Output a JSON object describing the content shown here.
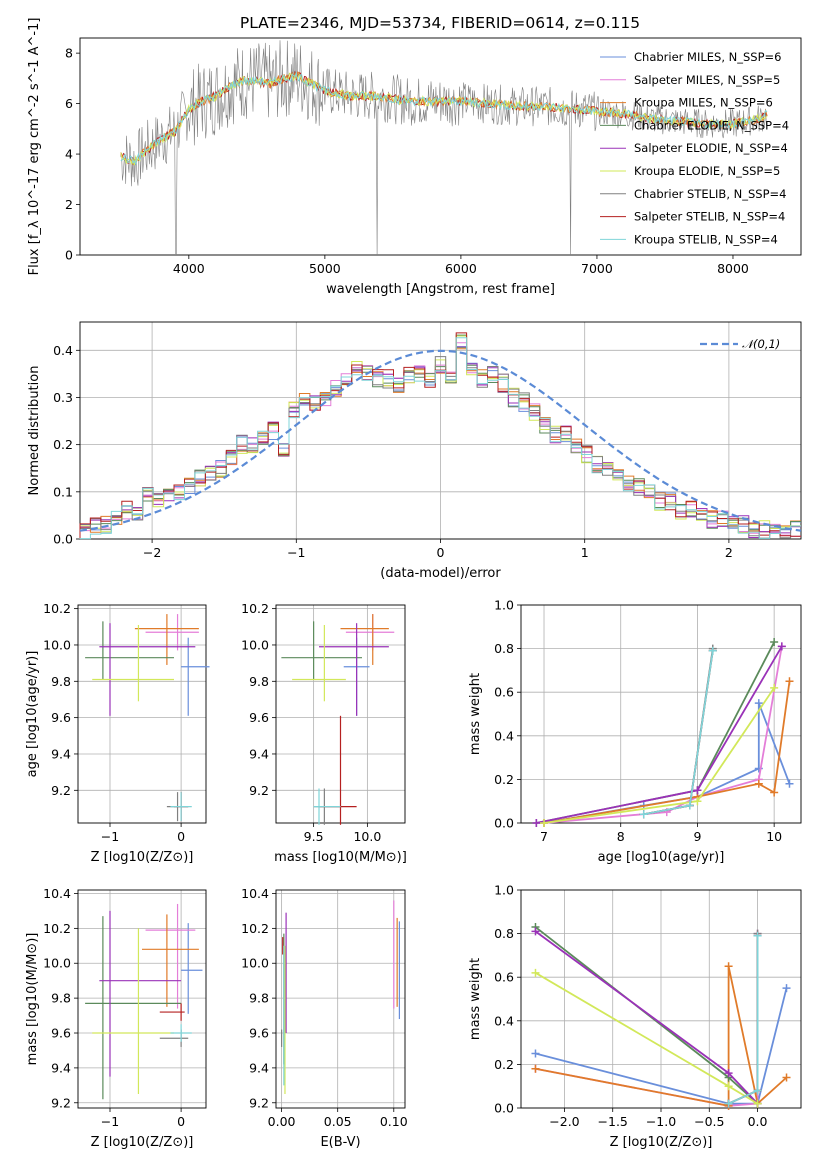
{
  "title": "PLATE=2346, MJD=53734, FIBERID=0614, z=0.115",
  "colors": {
    "chabrier_miles": "#6a8fdb",
    "salpeter_miles": "#e47ed8",
    "kroupa_miles": "#e07b2a",
    "chabrier_elodie": "#5b8a5b",
    "salpeter_elodie": "#9a32b8",
    "kroupa_elodie": "#d2e85a",
    "chabrier_stelib": "#808080",
    "salpeter_stelib": "#b52020",
    "kroupa_stelib": "#7fd4d8",
    "normal": "#5b8bd6"
  },
  "chart_data": [
    {
      "id": "spectrum",
      "type": "line",
      "xlabel": "wavelength [Angstrom, rest frame]",
      "ylabel": "Flux [f_λ 10^-17 erg cm^-2 s^-1 A^-1]",
      "xlim": [
        3200,
        8500
      ],
      "ylim": [
        0,
        8.6
      ],
      "xticks": [
        4000,
        5000,
        6000,
        7000,
        8000
      ],
      "yticks": [
        0,
        2,
        4,
        6,
        8
      ],
      "continuum": {
        "x": [
          3500,
          3600,
          3700,
          3800,
          3900,
          4000,
          4100,
          4200,
          4300,
          4400,
          4500,
          4600,
          4700,
          4800,
          4900,
          5000,
          5200,
          5400,
          5600,
          5800,
          6000,
          6200,
          6400,
          6600,
          6800,
          7000,
          7200,
          7400,
          7600,
          7800,
          8000,
          8200,
          8250
        ],
        "y": [
          3.9,
          3.7,
          4.2,
          4.6,
          4.9,
          5.8,
          6.1,
          6.3,
          6.7,
          6.9,
          6.9,
          6.8,
          7.0,
          7.1,
          6.8,
          6.5,
          6.3,
          6.3,
          6.1,
          6.1,
          6.1,
          6.0,
          5.9,
          5.9,
          5.8,
          5.7,
          5.6,
          5.4,
          5.3,
          5.2,
          5.2,
          5.4,
          5.6
        ]
      },
      "series": [
        {
          "name": "Chabrier MILES, N_SSP=6",
          "color_key": "chabrier_miles"
        },
        {
          "name": "Salpeter MILES, N_SSP=5",
          "color_key": "salpeter_miles"
        },
        {
          "name": "Kroupa MILES, N_SSP=6",
          "color_key": "kroupa_miles"
        },
        {
          "name": "Chabrier ELODIE, N_SSP=4",
          "color_key": "chabrier_elodie"
        },
        {
          "name": "Salpeter ELODIE, N_SSP=4",
          "color_key": "salpeter_elodie"
        },
        {
          "name": "Kroupa ELODIE, N_SSP=5",
          "color_key": "kroupa_elodie"
        },
        {
          "name": "Chabrier STELIB, N_SSP=4",
          "color_key": "chabrier_stelib"
        },
        {
          "name": "Salpeter STELIB, N_SSP=4",
          "color_key": "salpeter_stelib"
        },
        {
          "name": "Kroupa STELIB, N_SSP=4",
          "color_key": "kroupa_stelib"
        }
      ],
      "legend": "top-right"
    },
    {
      "id": "residuals",
      "type": "line",
      "xlabel": "(data-model)/error",
      "ylabel": "Normed distribution",
      "xlim": [
        -2.5,
        2.5
      ],
      "ylim": [
        0,
        0.46
      ],
      "xticks": [
        -2,
        -1,
        0,
        1,
        2
      ],
      "yticks": [
        0.0,
        0.1,
        0.2,
        0.3,
        0.4
      ],
      "grid": true,
      "hist_x": [
        -2.5,
        2.5
      ],
      "hist_y": [
        0.02,
        0.03,
        0.03,
        0.05,
        0.06,
        0.06,
        0.09,
        0.08,
        0.1,
        0.1,
        0.11,
        0.13,
        0.14,
        0.15,
        0.17,
        0.2,
        0.2,
        0.22,
        0.23,
        0.19,
        0.27,
        0.3,
        0.29,
        0.3,
        0.32,
        0.34,
        0.36,
        0.35,
        0.34,
        0.34,
        0.33,
        0.35,
        0.35,
        0.34,
        0.37,
        0.35,
        0.42,
        0.36,
        0.34,
        0.35,
        0.33,
        0.3,
        0.29,
        0.27,
        0.24,
        0.22,
        0.22,
        0.2,
        0.18,
        0.16,
        0.15,
        0.14,
        0.12,
        0.11,
        0.1,
        0.08,
        0.08,
        0.06,
        0.06,
        0.05,
        0.04,
        0.04,
        0.03,
        0.03,
        0.02,
        0.02,
        0.02,
        0.02,
        0.02
      ],
      "normal_label": "𝒩(0,1)",
      "legend": "top-right"
    },
    {
      "id": "age_vs_Z",
      "type": "scatter",
      "xlabel": "Z [log10(Z/Z⊙)]",
      "ylabel": "age  [log10(age/yr)]",
      "xlim": [
        -1.45,
        0.35
      ],
      "ylim": [
        9.02,
        10.22
      ],
      "xticks": [
        -1,
        0
      ],
      "yticks": [
        9.2,
        9.4,
        9.6,
        9.8,
        10.0,
        10.2
      ],
      "grid": true,
      "points": [
        {
          "c": "chabrier_miles",
          "x": 0.1,
          "y": 9.88,
          "xerr": [
            0.1,
            0.3
          ],
          "yerr": [
            0.27,
            0.16
          ]
        },
        {
          "c": "salpeter_miles",
          "x": -0.05,
          "y": 10.07,
          "xerr": [
            0.45,
            0.3
          ],
          "yerr": [
            0.1,
            0.1
          ]
        },
        {
          "c": "kroupa_miles",
          "x": -0.2,
          "y": 10.09,
          "xerr": [
            0.45,
            0.45
          ],
          "yerr": [
            0.2,
            0.08
          ]
        },
        {
          "c": "chabrier_elodie",
          "x": -1.1,
          "y": 9.93,
          "xerr": [
            0.25,
            1.0
          ],
          "yerr": [
            0.12,
            0.2
          ]
        },
        {
          "c": "salpeter_elodie",
          "x": -1.0,
          "y": 9.99,
          "xerr": [
            0.15,
            1.2
          ],
          "yerr": [
            0.38,
            0.13
          ]
        },
        {
          "c": "kroupa_elodie",
          "x": -0.6,
          "y": 9.81,
          "xerr": [
            0.65,
            0.5
          ],
          "yerr": [
            0.12,
            0.3
          ]
        },
        {
          "c": "chabrier_stelib",
          "x": -0.05,
          "y": 9.11,
          "xerr": [
            0.15,
            0.15
          ],
          "yerr": [
            0.08,
            0.08
          ]
        },
        {
          "c": "salpeter_stelib",
          "x": 0.0,
          "y": 9.11,
          "xerr": [
            0.1,
            0.1
          ],
          "yerr": [
            0.08,
            0.08
          ]
        },
        {
          "c": "kroupa_stelib",
          "x": 0.0,
          "y": 9.11,
          "xerr": [
            0.15,
            0.15
          ],
          "yerr": [
            0.08,
            0.08
          ]
        }
      ]
    },
    {
      "id": "age_vs_mass",
      "type": "scatter",
      "xlabel": "mass [log10(M/M⊙)]",
      "ylabel": "",
      "xlim": [
        9.15,
        10.35
      ],
      "ylim": [
        9.02,
        10.22
      ],
      "xticks": [
        9.5,
        10.0
      ],
      "yticks": [
        9.2,
        9.4,
        9.6,
        9.8,
        10.0,
        10.2
      ],
      "grid": true,
      "points": [
        {
          "c": "chabrier_miles",
          "x": 9.9,
          "y": 9.88,
          "xerr": [
            0.12,
            0.12
          ],
          "yerr": [
            0.27,
            0.16
          ]
        },
        {
          "c": "salpeter_miles",
          "x": 10.05,
          "y": 10.07,
          "xerr": [
            0.25,
            0.2
          ],
          "yerr": [
            0.1,
            0.1
          ]
        },
        {
          "c": "kroupa_miles",
          "x": 10.05,
          "y": 10.09,
          "xerr": [
            0.3,
            0.15
          ],
          "yerr": [
            0.2,
            0.08
          ]
        },
        {
          "c": "chabrier_elodie",
          "x": 9.5,
          "y": 9.93,
          "xerr": [
            0.3,
            0.45
          ],
          "yerr": [
            0.12,
            0.2
          ]
        },
        {
          "c": "salpeter_elodie",
          "x": 9.9,
          "y": 9.99,
          "xerr": [
            0.35,
            0.3
          ],
          "yerr": [
            0.38,
            0.13
          ]
        },
        {
          "c": "kroupa_elodie",
          "x": 9.6,
          "y": 9.81,
          "xerr": [
            0.3,
            0.2
          ],
          "yerr": [
            0.12,
            0.3
          ]
        },
        {
          "c": "chabrier_stelib",
          "x": 9.6,
          "y": 9.11,
          "xerr": [
            0.1,
            0.15
          ],
          "yerr": [
            0.1,
            0.1
          ]
        },
        {
          "c": "salpeter_stelib",
          "x": 9.75,
          "y": 9.11,
          "xerr": [
            0.2,
            0.15
          ],
          "yerr": [
            0.1,
            0.5
          ]
        },
        {
          "c": "kroupa_stelib",
          "x": 9.55,
          "y": 9.11,
          "xerr": [
            0.05,
            0.2
          ],
          "yerr": [
            0.1,
            0.1
          ]
        }
      ]
    },
    {
      "id": "weight_vs_age",
      "type": "line",
      "xlabel": "age  [log10(age/yr)]",
      "ylabel": "mass weight",
      "xlim": [
        6.7,
        10.35
      ],
      "ylim": [
        0,
        1.0
      ],
      "xticks": [
        7,
        8,
        9,
        10
      ],
      "yticks": [
        0.0,
        0.2,
        0.4,
        0.6,
        0.8,
        1.0
      ],
      "grid": true,
      "series": [
        {
          "c": "chabrier_miles",
          "x": [
            7.0,
            8.3,
            9.0,
            9.8,
            9.8,
            10.2
          ],
          "y": [
            0.0,
            0.08,
            0.12,
            0.25,
            0.55,
            0.18
          ]
        },
        {
          "c": "salpeter_miles",
          "x": [
            7.0,
            8.6,
            9.0,
            9.8,
            10.1
          ],
          "y": [
            0.0,
            0.05,
            0.12,
            0.2,
            0.81
          ]
        },
        {
          "c": "kroupa_miles",
          "x": [
            7.0,
            9.0,
            9.8,
            10.0,
            10.2
          ],
          "y": [
            0.0,
            0.12,
            0.18,
            0.14,
            0.65
          ]
        },
        {
          "c": "chabrier_elodie",
          "x": [
            6.9,
            9.0,
            10.0
          ],
          "y": [
            0.0,
            0.15,
            0.83
          ]
        },
        {
          "c": "salpeter_elodie",
          "x": [
            6.9,
            9.0,
            10.1
          ],
          "y": [
            0.0,
            0.15,
            0.81
          ]
        },
        {
          "c": "kroupa_elodie",
          "x": [
            7.0,
            9.0,
            10.0
          ],
          "y": [
            0.0,
            0.1,
            0.62
          ]
        },
        {
          "c": "chabrier_stelib",
          "x": [
            8.3,
            8.9,
            9.2
          ],
          "y": [
            0.04,
            0.08,
            0.8
          ]
        },
        {
          "c": "salpeter_stelib",
          "x": [
            8.3,
            8.9,
            9.2
          ],
          "y": [
            0.04,
            0.08,
            0.79
          ]
        },
        {
          "c": "kroupa_stelib",
          "x": [
            8.3,
            8.9,
            9.2
          ],
          "y": [
            0.04,
            0.08,
            0.79
          ]
        }
      ]
    },
    {
      "id": "mass_vs_Z",
      "type": "scatter",
      "xlabel": "Z [log10(Z/Z⊙)]",
      "ylabel": "mass [log10(M/M⊙)]",
      "xlim": [
        -1.45,
        0.35
      ],
      "ylim": [
        9.17,
        10.42
      ],
      "xticks": [
        -1,
        0
      ],
      "yticks": [
        9.2,
        9.4,
        9.6,
        9.8,
        10.0,
        10.2,
        10.4
      ],
      "grid": true,
      "points": [
        {
          "c": "chabrier_miles",
          "x": 0.1,
          "y": 9.96,
          "xerr": [
            0.1,
            0.2
          ],
          "yerr": [
            0.25,
            0.27
          ]
        },
        {
          "c": "salpeter_miles",
          "x": -0.05,
          "y": 10.19,
          "xerr": [
            0.45,
            0.25
          ],
          "yerr": [
            0.45,
            0.15
          ]
        },
        {
          "c": "kroupa_miles",
          "x": -0.2,
          "y": 10.08,
          "xerr": [
            0.35,
            0.45
          ],
          "yerr": [
            0.33,
            0.2
          ]
        },
        {
          "c": "chabrier_elodie",
          "x": -1.1,
          "y": 9.77,
          "xerr": [
            0.25,
            1.1
          ],
          "yerr": [
            0.55,
            0.5
          ]
        },
        {
          "c": "salpeter_elodie",
          "x": -1.0,
          "y": 9.9,
          "xerr": [
            0.15,
            1.0
          ],
          "yerr": [
            0.55,
            0.4
          ]
        },
        {
          "c": "kroupa_elodie",
          "x": -0.6,
          "y": 9.6,
          "xerr": [
            0.65,
            0.5
          ],
          "yerr": [
            0.35,
            0.6
          ]
        },
        {
          "c": "chabrier_stelib",
          "x": 0.0,
          "y": 9.57,
          "xerr": [
            0.3,
            0.1
          ],
          "yerr": [
            0.05,
            0.05
          ]
        },
        {
          "c": "salpeter_stelib",
          "x": 0.0,
          "y": 9.72,
          "xerr": [
            0.3,
            0.05
          ],
          "yerr": [
            0.05,
            0.05
          ]
        },
        {
          "c": "kroupa_stelib",
          "x": 0.0,
          "y": 9.6,
          "xerr": [
            0.15,
            0.15
          ],
          "yerr": [
            0.05,
            0.05
          ]
        }
      ]
    },
    {
      "id": "mass_vs_EBV",
      "type": "scatter",
      "xlabel": "E(B-V)",
      "ylabel": "",
      "xlim": [
        -0.005,
        0.11
      ],
      "ylim": [
        9.17,
        10.42
      ],
      "xticks": [
        0.0,
        0.05,
        0.1
      ],
      "yticks": [
        9.2,
        9.4,
        9.6,
        9.8,
        10.0,
        10.2,
        10.4
      ],
      "grid": true,
      "points": [
        {
          "c": "chabrier_miles",
          "x": 0.105,
          "y": 9.96,
          "xerr": [
            0,
            0
          ],
          "yerr": [
            0.28,
            0.28
          ]
        },
        {
          "c": "salpeter_miles",
          "x": 0.1,
          "y": 10.19,
          "xerr": [
            0,
            0
          ],
          "yerr": [
            0.45,
            0.17
          ]
        },
        {
          "c": "kroupa_miles",
          "x": 0.103,
          "y": 10.08,
          "xerr": [
            0,
            0
          ],
          "yerr": [
            0.33,
            0.18
          ]
        },
        {
          "c": "chabrier_elodie",
          "x": 0.002,
          "y": 9.77,
          "xerr": [
            0,
            0
          ],
          "yerr": [
            0.35,
            0.4
          ]
        },
        {
          "c": "salpeter_elodie",
          "x": 0.004,
          "y": 9.9,
          "xerr": [
            0,
            0
          ],
          "yerr": [
            0.3,
            0.39
          ]
        },
        {
          "c": "kroupa_elodie",
          "x": 0.003,
          "y": 9.6,
          "xerr": [
            0,
            0
          ],
          "yerr": [
            0.35,
            0.5
          ]
        },
        {
          "c": "chabrier_stelib",
          "x": 0.0,
          "y": 9.57,
          "xerr": [
            0,
            0
          ],
          "yerr": [
            0.05,
            0.05
          ]
        },
        {
          "c": "salpeter_stelib",
          "x": 0.001,
          "y": 10.1,
          "xerr": [
            0,
            0
          ],
          "yerr": [
            0.05,
            0.05
          ]
        },
        {
          "c": "kroupa_stelib",
          "x": 0.002,
          "y": 9.8,
          "xerr": [
            0,
            0
          ],
          "yerr": [
            0.5,
            0.3
          ]
        }
      ]
    },
    {
      "id": "weight_vs_Z",
      "type": "line",
      "xlabel": "Z [log10(Z/Z⊙)]",
      "ylabel": "mass weight",
      "xlim": [
        -2.45,
        0.45
      ],
      "ylim": [
        0,
        1.0
      ],
      "xticks": [
        -2.0,
        -1.5,
        -1.0,
        -0.5,
        0.0
      ],
      "yticks": [
        0.0,
        0.2,
        0.4,
        0.6,
        0.8,
        1.0
      ],
      "grid": true,
      "series": [
        {
          "c": "chabrier_miles",
          "x": [
            -2.3,
            -0.3,
            0.0,
            0.3
          ],
          "y": [
            0.25,
            0.02,
            0.02,
            0.55
          ]
        },
        {
          "c": "salpeter_miles",
          "x": [
            -2.3,
            -0.3,
            0.0,
            0.0
          ],
          "y": [
            0.18,
            0.01,
            0.02,
            0.8
          ]
        },
        {
          "c": "kroupa_miles",
          "x": [
            -2.3,
            -0.3,
            -0.3,
            0.0,
            0.3
          ],
          "y": [
            0.18,
            0.01,
            0.65,
            0.02,
            0.14
          ]
        },
        {
          "c": "chabrier_elodie",
          "x": [
            -2.3,
            -0.3,
            0.0
          ],
          "y": [
            0.83,
            0.14,
            0.02
          ]
        },
        {
          "c": "salpeter_elodie",
          "x": [
            -2.3,
            -0.3,
            0.0
          ],
          "y": [
            0.81,
            0.16,
            0.02
          ]
        },
        {
          "c": "kroupa_elodie",
          "x": [
            -2.3,
            -0.3,
            0.0
          ],
          "y": [
            0.62,
            0.1,
            0.02
          ]
        },
        {
          "c": "chabrier_stelib",
          "x": [
            -0.3,
            0.0,
            0.0
          ],
          "y": [
            0.02,
            0.08,
            0.8
          ]
        },
        {
          "c": "salpeter_stelib",
          "x": [
            -0.3,
            0.0,
            0.0
          ],
          "y": [
            0.02,
            0.08,
            0.79
          ]
        },
        {
          "c": "kroupa_stelib",
          "x": [
            -0.3,
            0.0,
            0.0
          ],
          "y": [
            0.02,
            0.08,
            0.79
          ]
        }
      ]
    }
  ]
}
